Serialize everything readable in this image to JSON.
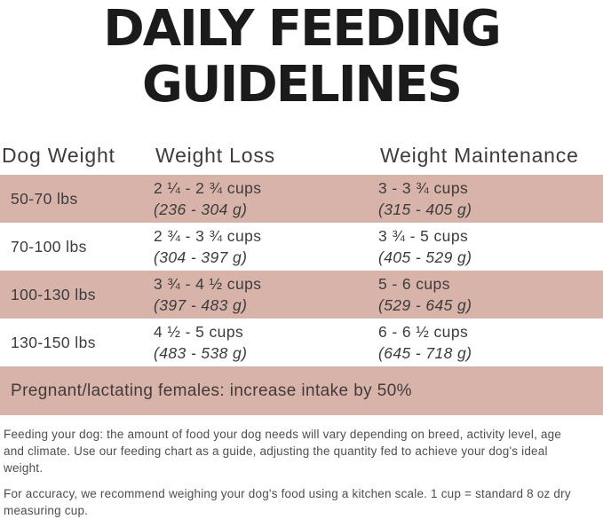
{
  "title": {
    "line1": "DAILY FEEDING",
    "line2": "GUIDELINES"
  },
  "table": {
    "columns": [
      "Dog Weight",
      "Weight Loss",
      "Weight Maintenance"
    ],
    "rows": [
      {
        "weight": "50-70 lbs",
        "loss_cups": "2 ¼ - 2 ¾ cups",
        "loss_grams": "(236 - 304 g)",
        "maint_cups": "3 - 3 ¾ cups",
        "maint_grams": "(315 - 405 g)"
      },
      {
        "weight": "70-100 lbs",
        "loss_cups": "2 ¾ - 3 ¾ cups",
        "loss_grams": "(304 - 397 g)",
        "maint_cups": "3 ¾ - 5 cups",
        "maint_grams": "(405 - 529 g)"
      },
      {
        "weight": "100-130 lbs",
        "loss_cups": "3 ¾ - 4 ½ cups",
        "loss_grams": "(397 - 483 g)",
        "maint_cups": "5 - 6 cups",
        "maint_grams": "(529 - 645 g)"
      },
      {
        "weight": "130-150 lbs",
        "loss_cups": "4 ½ - 5 cups",
        "loss_grams": "(483 - 538 g)",
        "maint_cups": "6 - 6 ½ cups",
        "maint_grams": "(645 - 718 g)"
      }
    ],
    "note": "Pregnant/lactating females: increase intake by 50%"
  },
  "footer": {
    "paragraph1": "Feeding your dog: the amount of food your dog needs will vary depending on breed, activity level, age and climate. Use our feeding chart as a guide, adjusting the quantity fed to achieve your dog's ideal weight.",
    "paragraph2": "For accuracy, we recommend weighing your dog's food using a kitchen scale. 1 cup = standard 8 oz dry measuring cup."
  },
  "colors": {
    "row_highlight": "#d8b3a9",
    "title_text": "#1b1b1b",
    "body_text": "#3c3c3c",
    "footer_text": "#4e4e4e"
  }
}
